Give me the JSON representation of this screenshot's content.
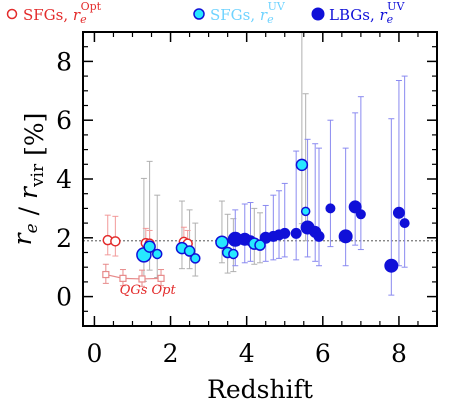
{
  "chart_data": {
    "type": "scatter",
    "xlabel": "Redshift",
    "ylabel": {
      "main": "r",
      "sub1": "e",
      "sep": " / ",
      "main2": "r",
      "sub2": "vir",
      "unit": " [%]"
    },
    "xlim": [
      -0.3,
      9.0
    ],
    "ylim": [
      -1.0,
      9.0
    ],
    "xticks": [
      0,
      2,
      4,
      6,
      8
    ],
    "yticks": [
      0,
      2,
      4,
      6,
      8
    ],
    "reference_line": {
      "y": 1.9,
      "style": "dotted"
    },
    "legend": {
      "placement": "top",
      "entries": [
        {
          "series": "sfg_opt",
          "prefix": "SFGs, ",
          "r": "r",
          "sub": "e",
          "sup": "Opt",
          "color": "#e32b2b"
        },
        {
          "series": "sfg_uv",
          "prefix": "SFGs, ",
          "r": "r",
          "sub": "e",
          "sup": "UV",
          "color": "#6fd3ff"
        },
        {
          "series": "lbg_uv",
          "prefix": "LBGs, ",
          "r": "r",
          "sub": "e",
          "sup": "UV",
          "color": "#1010d8"
        }
      ]
    },
    "annotation": {
      "text": "QGs Opt",
      "color": "#e32b2b"
    },
    "colors": {
      "sfg_opt": "#e32b2b",
      "qg": "#e78a8a",
      "sfg_uv_fill": "#26e8ff",
      "sfg_uv_edge": "#1010d8",
      "lbg": "#1010d8",
      "lbg_err": "#8a8af0",
      "sfg_uv_err": "#b0b0b0",
      "sfg_opt_err": "#f29a9a"
    },
    "series": [
      {
        "name": "SFGs, r_e Opt",
        "key": "sfg_opt",
        "marker": "open-circle",
        "points": [
          {
            "x": 0.35,
            "y": 1.92,
            "err_lo": 0.5,
            "err_hi": 0.85
          },
          {
            "x": 0.55,
            "y": 1.88,
            "err_lo": 0.5,
            "err_hi": 0.85
          },
          {
            "x": 1.35,
            "y": 1.82,
            "err_lo": 0.35,
            "err_hi": 0.5
          },
          {
            "x": 1.45,
            "y": 1.8,
            "err_lo": 0.3,
            "err_hi": 0.45
          },
          {
            "x": 2.35,
            "y": 1.86,
            "err_lo": 0.35,
            "err_hi": 0.5
          },
          {
            "x": 2.45,
            "y": 1.8,
            "err_lo": 0.3,
            "err_hi": 0.45
          }
        ]
      },
      {
        "name": "QGs Opt",
        "key": "qg",
        "marker": "open-square",
        "connected": true,
        "points": [
          {
            "x": 0.3,
            "y": 0.75,
            "err_lo": 0.3,
            "err_hi": 0.35
          },
          {
            "x": 0.75,
            "y": 0.62,
            "err_lo": 0.25,
            "err_hi": 0.3
          },
          {
            "x": 1.25,
            "y": 0.6,
            "err_lo": 0.25,
            "err_hi": 0.3
          },
          {
            "x": 1.75,
            "y": 0.62,
            "err_lo": 0.25,
            "err_hi": 0.3
          }
        ]
      },
      {
        "name": "SFGs, r_e UV",
        "key": "sfg_uv",
        "marker": "filled-circle",
        "points": [
          {
            "x": 1.3,
            "y": 1.42,
            "size": 7,
            "err_lo": 0.9,
            "err_hi": 2.6
          },
          {
            "x": 1.45,
            "y": 1.7,
            "size": 5.5,
            "err_lo": 0.8,
            "err_hi": 2.9
          },
          {
            "x": 1.65,
            "y": 1.45,
            "size": 4.5,
            "err_lo": 0.8,
            "err_hi": 2.0
          },
          {
            "x": 2.3,
            "y": 1.65,
            "size": 5.5,
            "err_lo": 0.7,
            "err_hi": 1.6
          },
          {
            "x": 2.5,
            "y": 1.55,
            "size": 5,
            "err_lo": 0.6,
            "err_hi": 1.4
          },
          {
            "x": 2.65,
            "y": 1.3,
            "size": 4.5,
            "err_lo": 0.6,
            "err_hi": 1.2
          },
          {
            "x": 3.35,
            "y": 1.85,
            "size": 6,
            "err_lo": 0.7,
            "err_hi": 1.4
          },
          {
            "x": 3.5,
            "y": 1.5,
            "size": 5,
            "err_lo": 0.7,
            "err_hi": 1.3
          },
          {
            "x": 3.65,
            "y": 1.45,
            "size": 4.5,
            "err_lo": 0.6,
            "err_hi": 1.2
          },
          {
            "x": 4.2,
            "y": 1.8,
            "size": 5.5,
            "err_lo": 0.7,
            "err_hi": 1.2
          },
          {
            "x": 4.35,
            "y": 1.75,
            "size": 5,
            "err_lo": 0.6,
            "err_hi": 1.1
          },
          {
            "x": 5.45,
            "y": 4.48,
            "size": 5.5,
            "err_lo": 2.0,
            "err_hi": 4.5
          },
          {
            "x": 5.55,
            "y": 2.9,
            "size": 4,
            "err_lo": 1.0,
            "err_hi": 4.0
          }
        ]
      },
      {
        "name": "LBGs, r_e UV",
        "key": "lbg_uv",
        "marker": "filled-circle",
        "points": [
          {
            "x": 3.7,
            "y": 1.95,
            "size": 7,
            "err_lo": 0.9,
            "err_hi": 1.0
          },
          {
            "x": 3.95,
            "y": 1.95,
            "size": 6,
            "err_lo": 0.8,
            "err_hi": 1.2
          },
          {
            "x": 4.1,
            "y": 1.9,
            "size": 5,
            "err_lo": 0.7,
            "err_hi": 1.3
          },
          {
            "x": 4.5,
            "y": 2.0,
            "size": 5.5,
            "err_lo": 0.8,
            "err_hi": 1.1
          },
          {
            "x": 4.7,
            "y": 2.05,
            "size": 5,
            "err_lo": 0.8,
            "err_hi": 1.4
          },
          {
            "x": 4.85,
            "y": 2.1,
            "size": 5,
            "err_lo": 0.8,
            "err_hi": 1.5
          },
          {
            "x": 5.0,
            "y": 2.15,
            "size": 5,
            "err_lo": 0.8,
            "err_hi": 1.7
          },
          {
            "x": 5.3,
            "y": 2.15,
            "size": 5,
            "err_lo": 0.9,
            "err_hi": 2.8
          },
          {
            "x": 5.6,
            "y": 2.35,
            "size": 6.5,
            "err_lo": 1.0,
            "err_hi": 3.0
          },
          {
            "x": 5.8,
            "y": 2.2,
            "size": 5.5,
            "err_lo": 1.0,
            "err_hi": 3.0
          },
          {
            "x": 5.9,
            "y": 2.05,
            "size": 5,
            "err_lo": 1.0,
            "err_hi": 3.0
          },
          {
            "x": 6.2,
            "y": 3.0,
            "size": 4.5,
            "err_lo": 1.3,
            "err_hi": 3.0
          },
          {
            "x": 6.6,
            "y": 2.05,
            "size": 6.5,
            "err_lo": 1.0,
            "err_hi": 3.0
          },
          {
            "x": 6.85,
            "y": 3.05,
            "size": 6,
            "err_lo": 1.3,
            "err_hi": 3.2
          },
          {
            "x": 7.0,
            "y": 2.8,
            "size": 4.5,
            "err_lo": 1.2,
            "err_hi": 4.0
          },
          {
            "x": 7.8,
            "y": 1.05,
            "size": 6.5,
            "err_lo": 1.0,
            "err_hi": 5.0
          },
          {
            "x": 8.0,
            "y": 2.85,
            "size": 5.5,
            "err_lo": 1.8,
            "err_hi": 4.5
          },
          {
            "x": 8.15,
            "y": 2.5,
            "size": 4.5,
            "err_lo": 1.5,
            "err_hi": 5.0
          }
        ]
      }
    ]
  }
}
